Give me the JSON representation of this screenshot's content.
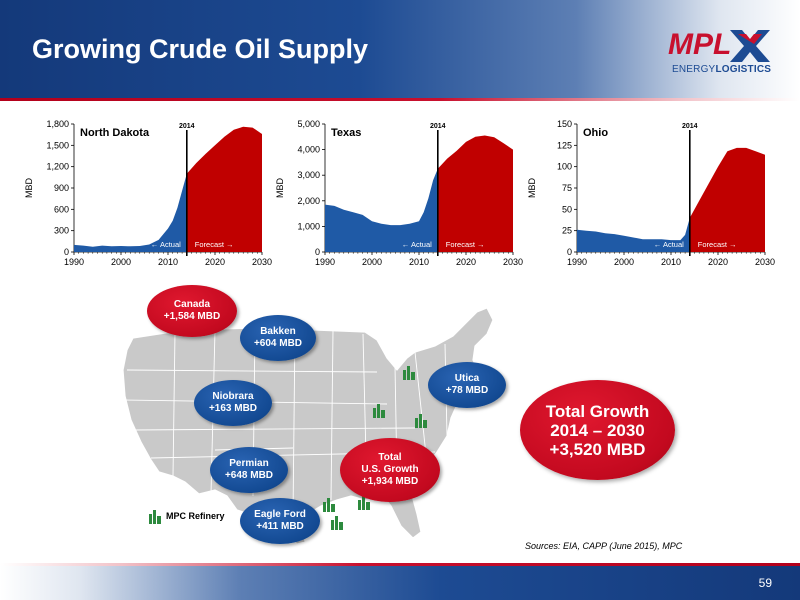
{
  "header": {
    "title": "Growing Crude Oil Supply",
    "logo_text_energy": "ENERGY",
    "logo_text_logistics": "LOGISTICS"
  },
  "colors": {
    "header_blue": "#1d4b93",
    "accent_red": "#c8102e",
    "actual_fill": "#1f5aa6",
    "forecast_fill": "#c00000"
  },
  "chart_data": [
    {
      "type": "area",
      "title": "North Dakota",
      "ylabel": "MBD",
      "ylim": [
        0,
        1800
      ],
      "yticks": [
        0,
        300,
        600,
        900,
        1200,
        1500,
        1800
      ],
      "ytick_labels": [
        "0",
        "300",
        "600",
        "900",
        "1,200",
        "1,500",
        "1,800"
      ],
      "xlim": [
        1990,
        2030
      ],
      "xticks": [
        1990,
        2000,
        2010,
        2020,
        2030
      ],
      "marker_year": 2014,
      "marker_label": "2014",
      "actual_label": "← Actual",
      "forecast_label": "Forecast →",
      "series": [
        {
          "name": "Actual",
          "x": [
            1990,
            1992,
            1994,
            1996,
            1998,
            2000,
            2002,
            2004,
            2006,
            2008,
            2010,
            2011,
            2012,
            2013,
            2014
          ],
          "values": [
            100,
            90,
            75,
            90,
            80,
            85,
            80,
            85,
            105,
            170,
            330,
            440,
            620,
            860,
            1100
          ]
        },
        {
          "name": "Forecast",
          "x": [
            2014,
            2016,
            2018,
            2020,
            2022,
            2024,
            2026,
            2028,
            2030
          ],
          "values": [
            1100,
            1250,
            1380,
            1500,
            1620,
            1720,
            1760,
            1750,
            1660
          ]
        }
      ]
    },
    {
      "type": "area",
      "title": "Texas",
      "ylabel": "MBD",
      "ylim": [
        0,
        5000
      ],
      "yticks": [
        0,
        1000,
        2000,
        3000,
        4000,
        5000
      ],
      "ytick_labels": [
        "0",
        "1,000",
        "2,000",
        "3,000",
        "4,000",
        "5,000"
      ],
      "xlim": [
        1990,
        2030
      ],
      "xticks": [
        1990,
        2000,
        2010,
        2020,
        2030
      ],
      "marker_year": 2014,
      "marker_label": "2014",
      "actual_label": "← Actual",
      "forecast_label": "Forecast →",
      "series": [
        {
          "name": "Actual",
          "x": [
            1990,
            1992,
            1994,
            1996,
            1998,
            2000,
            2002,
            2004,
            2006,
            2008,
            2010,
            2011,
            2012,
            2013,
            2014
          ],
          "values": [
            1850,
            1800,
            1650,
            1550,
            1450,
            1200,
            1100,
            1050,
            1050,
            1100,
            1200,
            1550,
            2100,
            2800,
            3250
          ]
        },
        {
          "name": "Forecast",
          "x": [
            2014,
            2016,
            2018,
            2020,
            2022,
            2024,
            2026,
            2028,
            2030
          ],
          "values": [
            3250,
            3650,
            3950,
            4300,
            4500,
            4550,
            4480,
            4250,
            4000
          ]
        }
      ]
    },
    {
      "type": "area",
      "title": "Ohio",
      "ylabel": "MBD",
      "ylim": [
        0,
        150
      ],
      "yticks": [
        0,
        25,
        50,
        75,
        100,
        125,
        150
      ],
      "ytick_labels": [
        "0",
        "25",
        "50",
        "75",
        "100",
        "125",
        "150"
      ],
      "xlim": [
        1990,
        2030
      ],
      "xticks": [
        1990,
        2000,
        2010,
        2020,
        2030
      ],
      "marker_year": 2014,
      "marker_label": "2014",
      "actual_label": "← Actual",
      "forecast_label": "Forecast →",
      "series": [
        {
          "name": "Actual",
          "x": [
            1990,
            1992,
            1994,
            1996,
            1998,
            2000,
            2002,
            2004,
            2006,
            2008,
            2010,
            2012,
            2013,
            2014
          ],
          "values": [
            26,
            25,
            24,
            22,
            21,
            19,
            17,
            15,
            15,
            15,
            14,
            14,
            20,
            40
          ]
        },
        {
          "name": "Forecast",
          "x": [
            2014,
            2016,
            2018,
            2020,
            2022,
            2024,
            2026,
            2028,
            2030
          ],
          "values": [
            40,
            60,
            80,
            100,
            118,
            122,
            122,
            118,
            114
          ]
        }
      ]
    }
  ],
  "map": {
    "legend_label": "MPC Refinery",
    "bubbles": {
      "canada": {
        "name": "Canada",
        "value": "+1,584 MBD"
      },
      "bakken": {
        "name": "Bakken",
        "value": "+604 MBD"
      },
      "niobrara": {
        "name": "Niobrara",
        "value": "+163 MBD"
      },
      "utica": {
        "name": "Utica",
        "value": "+78 MBD"
      },
      "permian": {
        "name": "Permian",
        "value": "+648 MBD"
      },
      "total_us_line1": "Total",
      "total_us_line2": "U.S. Growth",
      "total_us_value": "+1,934 MBD",
      "eagle_ford": {
        "name": "Eagle Ford",
        "value": "+411 MBD"
      }
    }
  },
  "total_growth": {
    "line1": "Total Growth",
    "line2": "2014 – 2030",
    "line3": "+3,520 MBD"
  },
  "sources": "Sources:  EIA, CAPP (June 2015), MPC",
  "page_number": "59"
}
